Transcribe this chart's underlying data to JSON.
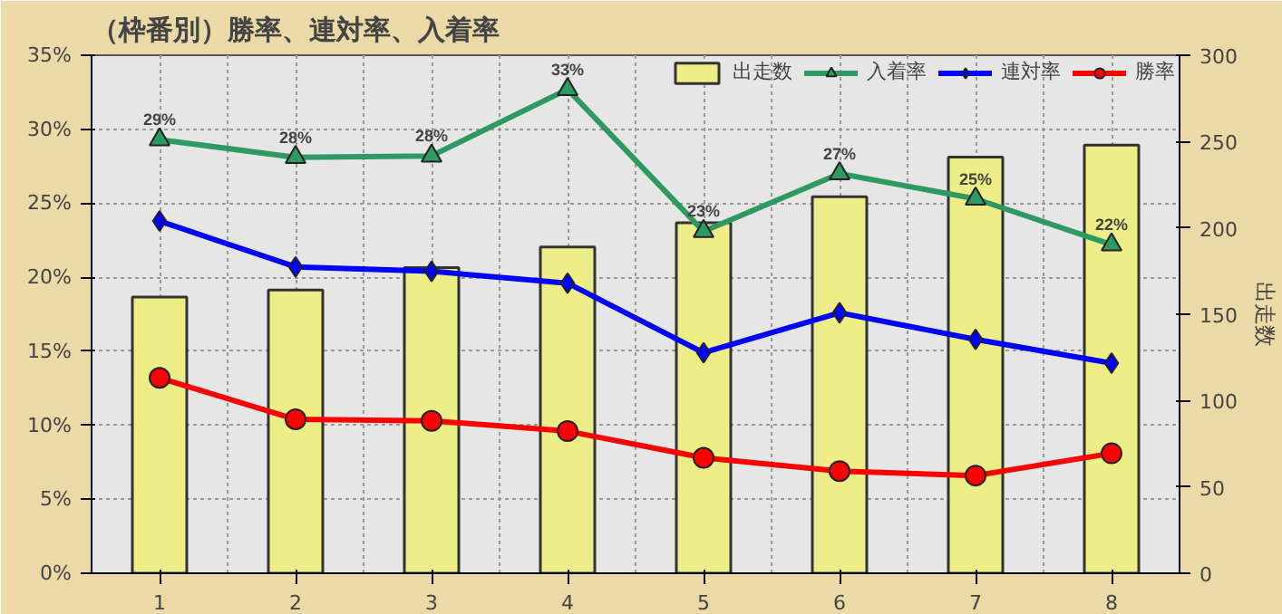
{
  "chart_data": {
    "type": "line",
    "title": "（枠番別）勝率、連対率、入着率",
    "y2label": "出走数",
    "categories": [
      "1",
      "2",
      "3",
      "4",
      "5",
      "6",
      "7",
      "8"
    ],
    "series": [
      {
        "name": "出走数",
        "type": "bar",
        "axis": "y2",
        "color": "#eeee88",
        "values": [
          160,
          164,
          177,
          189,
          203,
          218,
          241,
          248
        ]
      },
      {
        "name": "入着率",
        "marker": "triangle",
        "color": "#2e9960",
        "values": [
          29.3,
          28.1,
          28.2,
          32.7,
          23.1,
          27.0,
          25.3,
          22.2
        ],
        "value_labels": [
          "29%",
          "28%",
          "28%",
          "33%",
          "23%",
          "27%",
          "25%",
          "22%"
        ]
      },
      {
        "name": "連対率",
        "marker": "diamond",
        "color": "#0000ff",
        "values": [
          23.8,
          20.7,
          20.4,
          19.6,
          14.9,
          17.6,
          15.8,
          14.2
        ]
      },
      {
        "name": "勝率",
        "marker": "circle",
        "color": "#ff0000",
        "values": [
          13.2,
          10.4,
          10.3,
          9.6,
          7.8,
          6.9,
          6.6,
          8.1
        ]
      }
    ],
    "ylim": [
      0,
      35
    ],
    "yticks": [
      {
        "value": 0,
        "label": "0%"
      },
      {
        "value": 5,
        "label": "5%"
      },
      {
        "value": 10,
        "label": "10%"
      },
      {
        "value": 15,
        "label": "15%"
      },
      {
        "value": 20,
        "label": "20%"
      },
      {
        "value": 25,
        "label": "25%"
      },
      {
        "value": 30,
        "label": "30%"
      },
      {
        "value": 35,
        "label": "35%"
      }
    ],
    "y2lim": [
      0,
      300
    ],
    "y2ticks": [
      0,
      50,
      100,
      150,
      200,
      250,
      300
    ],
    "grid": true,
    "legend": "top right"
  }
}
